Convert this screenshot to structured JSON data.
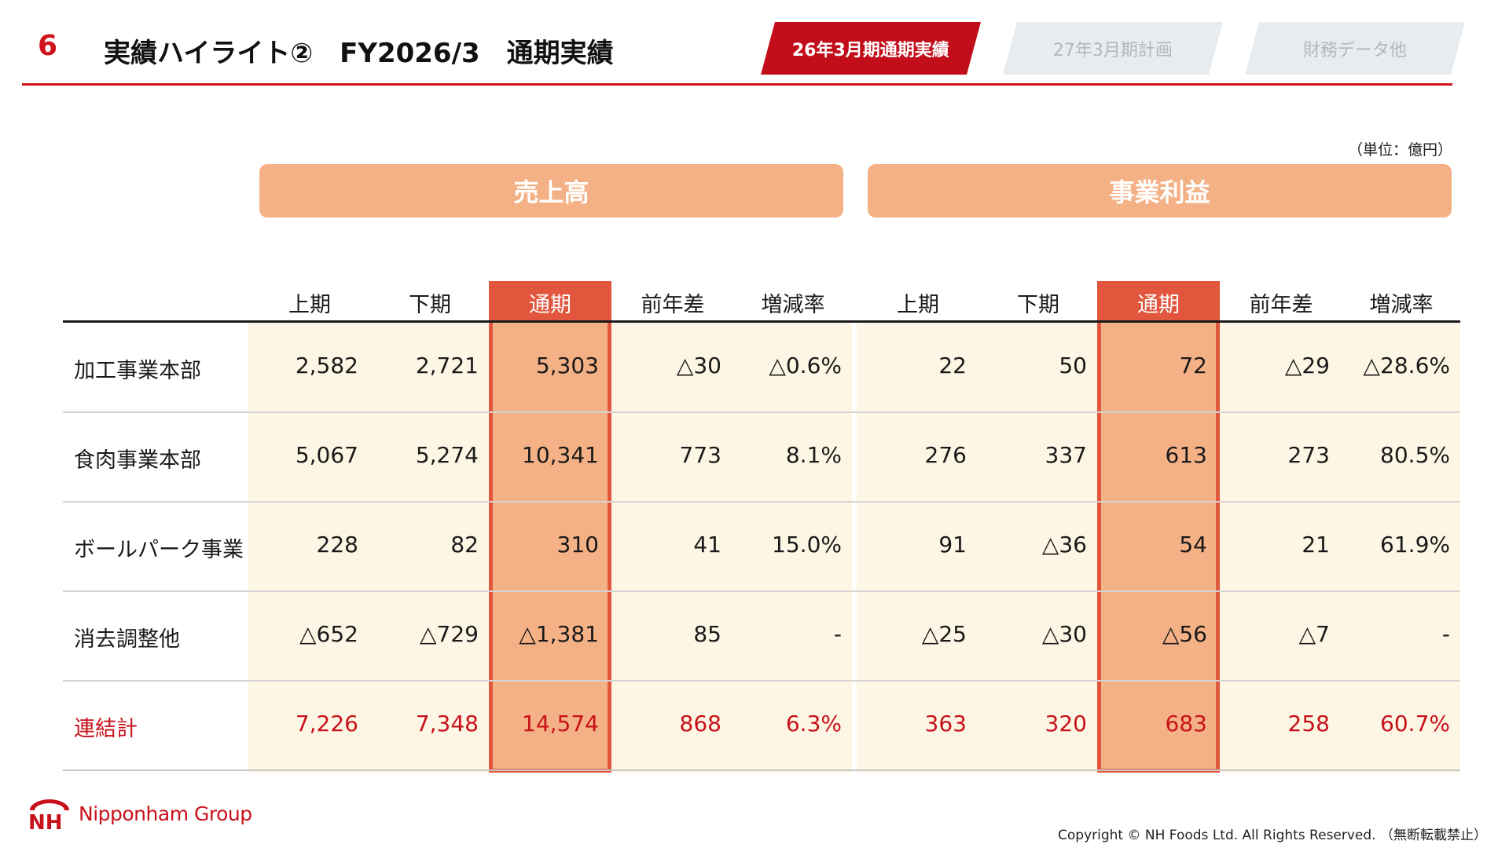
{
  "header": {
    "page_number": "6",
    "title": "実績ハイライト②　FY2026/3　通期実績",
    "tabs": [
      {
        "label": "26年3月期通期実績",
        "active": true
      },
      {
        "label": "27年3月期計画",
        "active": false
      },
      {
        "label": "財務データ他",
        "active": false
      }
    ]
  },
  "unit_note": "（単位：億円）",
  "sections": {
    "sales": "売上高",
    "profit": "事業利益"
  },
  "columns": [
    "上期",
    "下期",
    "通期",
    "前年差",
    "増減率",
    "上期",
    "下期",
    "通期",
    "前年差",
    "増減率"
  ],
  "rows": [
    {
      "label": "加工事業本部",
      "values": [
        "2,582",
        "2,721",
        "5,303",
        "△30",
        "△0.6%",
        "22",
        "50",
        "72",
        "△29",
        "△28.6%"
      ]
    },
    {
      "label": "食肉事業本部",
      "values": [
        "5,067",
        "5,274",
        "10,341",
        "773",
        "8.1%",
        "276",
        "337",
        "613",
        "273",
        "80.5%"
      ]
    },
    {
      "label": "ボールパーク事業",
      "values": [
        "228",
        "82",
        "310",
        "41",
        "15.0%",
        "91",
        "△36",
        "54",
        "21",
        "61.9%"
      ]
    },
    {
      "label": "消去調整他",
      "values": [
        "△652",
        "△729",
        "△1,381",
        "85",
        "-",
        "△25",
        "△30",
        "△56",
        "△7",
        "-"
      ]
    },
    {
      "label": "連結計",
      "values": [
        "7,226",
        "7,348",
        "14,574",
        "868",
        "6.3%",
        "363",
        "320",
        "683",
        "258",
        "60.7%"
      ]
    }
  ],
  "footer": {
    "logo_text": "Nipponham Group",
    "copyright": "Copyright © NH Foods Ltd. All Rights Reserved. （無断転載禁止）"
  },
  "colors": {
    "brand_red": "#d0121b",
    "accent_orange": "#e2563e",
    "section_header": "#f4b186",
    "cell_cream": "#fdf6e4"
  }
}
